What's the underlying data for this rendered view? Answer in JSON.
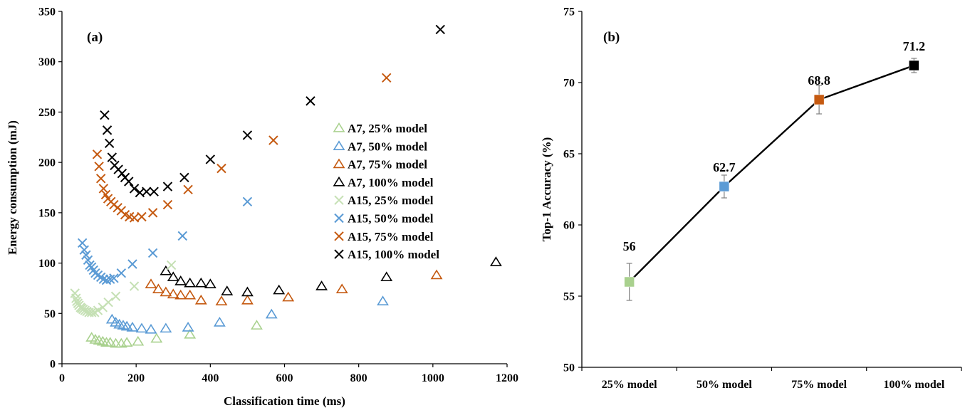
{
  "chart_data": [
    {
      "type": "scatter",
      "panel_label": "(a)",
      "xlabel": "Classification time (ms)",
      "ylabel": "Energy consumption (mJ)",
      "xlim": [
        0,
        1200
      ],
      "ylim": [
        0,
        350
      ],
      "x_ticks": [
        "0",
        "200",
        "400",
        "600",
        "800",
        "1000",
        "1200"
      ],
      "y_ticks": [
        "0",
        "50",
        "100",
        "150",
        "200",
        "250",
        "300",
        "350"
      ],
      "grid": false,
      "legend_position": "right",
      "series": [
        {
          "name": "A7, 25% model",
          "marker": "triangle",
          "color": "#a9d18e",
          "points": [
            [
              80,
              26
            ],
            [
              90,
              24
            ],
            [
              100,
              23
            ],
            [
              110,
              22
            ],
            [
              120,
              21
            ],
            [
              130,
              21
            ],
            [
              145,
              20
            ],
            [
              160,
              20
            ],
            [
              175,
              21
            ],
            [
              205,
              22
            ],
            [
              255,
              25
            ],
            [
              345,
              29
            ],
            [
              525,
              38
            ]
          ]
        },
        {
          "name": "A7, 50% model",
          "marker": "triangle",
          "color": "#5b9bd5",
          "points": [
            [
              135,
              44
            ],
            [
              145,
              41
            ],
            [
              155,
              39
            ],
            [
              165,
              38
            ],
            [
              175,
              37
            ],
            [
              190,
              36
            ],
            [
              215,
              35
            ],
            [
              240,
              34
            ],
            [
              280,
              35
            ],
            [
              340,
              36
            ],
            [
              425,
              41
            ],
            [
              565,
              49
            ],
            [
              865,
              62
            ]
          ]
        },
        {
          "name": "A7, 75% model",
          "marker": "triangle",
          "color": "#c55a11",
          "points": [
            [
              240,
              79
            ],
            [
              260,
              74
            ],
            [
              280,
              71
            ],
            [
              300,
              69
            ],
            [
              320,
              68
            ],
            [
              345,
              68
            ],
            [
              375,
              63
            ],
            [
              430,
              62
            ],
            [
              500,
              63
            ],
            [
              610,
              66
            ],
            [
              755,
              74
            ],
            [
              1010,
              88
            ]
          ]
        },
        {
          "name": "A7, 100% model",
          "marker": "triangle",
          "color": "#000000",
          "points": [
            [
              280,
              92
            ],
            [
              300,
              86
            ],
            [
              320,
              82
            ],
            [
              345,
              80
            ],
            [
              375,
              80
            ],
            [
              400,
              79
            ],
            [
              445,
              72
            ],
            [
              500,
              71
            ],
            [
              585,
              73
            ],
            [
              700,
              77
            ],
            [
              875,
              86
            ],
            [
              1170,
              101
            ]
          ]
        },
        {
          "name": "A15, 25% model",
          "marker": "x",
          "color": "#c5e0b4",
          "points": [
            [
              35,
              70
            ],
            [
              38,
              65
            ],
            [
              40,
              62
            ],
            [
              43,
              60
            ],
            [
              46,
              58
            ],
            [
              50,
              56
            ],
            [
              53,
              55
            ],
            [
              57,
              54
            ],
            [
              62,
              53
            ],
            [
              67,
              52
            ],
            [
              73,
              51
            ],
            [
              80,
              51
            ],
            [
              88,
              51
            ],
            [
              97,
              53
            ],
            [
              110,
              56
            ],
            [
              125,
              61
            ],
            [
              145,
              67
            ],
            [
              195,
              77
            ],
            [
              295,
              98
            ]
          ]
        },
        {
          "name": "A15, 50% model",
          "marker": "x",
          "color": "#5b9bd5",
          "points": [
            [
              55,
              120
            ],
            [
              60,
              113
            ],
            [
              65,
              108
            ],
            [
              70,
              103
            ],
            [
              75,
              98
            ],
            [
              80,
              96
            ],
            [
              85,
              93
            ],
            [
              90,
              90
            ],
            [
              97,
              88
            ],
            [
              105,
              86
            ],
            [
              112,
              84
            ],
            [
              120,
              83
            ],
            [
              130,
              84
            ],
            [
              140,
              85
            ],
            [
              160,
              90
            ],
            [
              190,
              99
            ],
            [
              245,
              110
            ],
            [
              325,
              127
            ],
            [
              500,
              161
            ]
          ]
        },
        {
          "name": "A15, 75% model",
          "marker": "x",
          "color": "#c55a11",
          "points": [
            [
              95,
              208
            ],
            [
              100,
              196
            ],
            [
              105,
              184
            ],
            [
              112,
              174
            ],
            [
              118,
              168
            ],
            [
              124,
              164
            ],
            [
              132,
              161
            ],
            [
              140,
              158
            ],
            [
              150,
              155
            ],
            [
              160,
              152
            ],
            [
              170,
              148
            ],
            [
              182,
              146
            ],
            [
              195,
              145
            ],
            [
              215,
              146
            ],
            [
              245,
              150
            ],
            [
              285,
              158
            ],
            [
              340,
              173
            ],
            [
              430,
              194
            ],
            [
              570,
              222
            ],
            [
              875,
              284
            ]
          ]
        },
        {
          "name": "A15, 100% model",
          "marker": "x",
          "color": "#000000",
          "points": [
            [
              115,
              247
            ],
            [
              122,
              232
            ],
            [
              128,
              219
            ],
            [
              135,
              205
            ],
            [
              142,
              197
            ],
            [
              152,
              193
            ],
            [
              162,
              189
            ],
            [
              170,
              185
            ],
            [
              180,
              181
            ],
            [
              195,
              174
            ],
            [
              210,
              170
            ],
            [
              228,
              171
            ],
            [
              248,
              171
            ],
            [
              285,
              176
            ],
            [
              330,
              185
            ],
            [
              400,
              203
            ],
            [
              500,
              227
            ],
            [
              670,
              261
            ],
            [
              1020,
              332
            ]
          ]
        }
      ]
    },
    {
      "type": "line",
      "panel_label": "(b)",
      "xlabel": "",
      "ylabel": "Top-1 Accuracy (%)",
      "categories": [
        "25% model",
        "50% model",
        "75% model",
        "100% model"
      ],
      "ylim": [
        50,
        75
      ],
      "y_ticks": [
        "50",
        "55",
        "60",
        "65",
        "70",
        "75"
      ],
      "grid": false,
      "values": [
        56,
        62.7,
        68.8,
        71.2
      ],
      "value_labels": [
        "56",
        "62.7",
        "68.8",
        "71.2"
      ],
      "error": [
        1.3,
        0.8,
        1.0,
        0.5
      ],
      "marker_colors": [
        "#a9d18e",
        "#5b9bd5",
        "#c55a11",
        "#000000"
      ],
      "line_color": "#000000"
    }
  ]
}
